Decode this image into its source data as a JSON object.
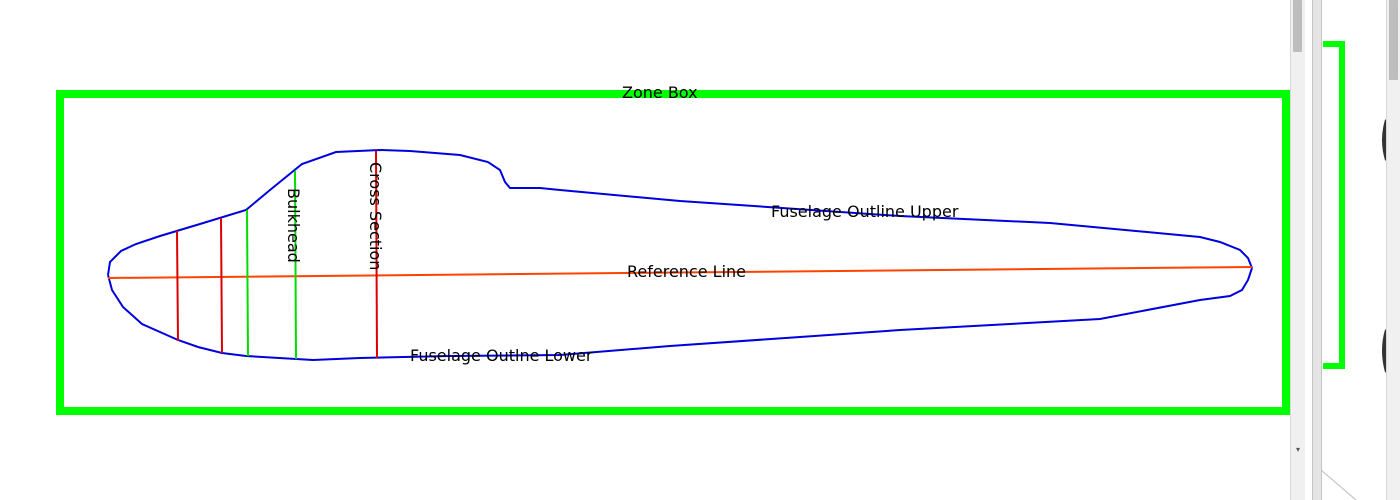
{
  "diagram": {
    "labels": {
      "zone_box": "Zone Box",
      "reference_line": "Reference Line",
      "outline_upper": "Fuselage Outline Upper",
      "outline_lower": "Fuselage Outlne Lower",
      "bulkhead": "Bulkhead",
      "cross_section": "Cross Section"
    },
    "colors": {
      "zone_box": "#00ff00",
      "outline": "#0000dd",
      "reference_line": "#ff4400",
      "cross_section": "#dd0000",
      "bulkhead": "#00dd00"
    }
  },
  "icons": {
    "scroll_down": "▾"
  }
}
